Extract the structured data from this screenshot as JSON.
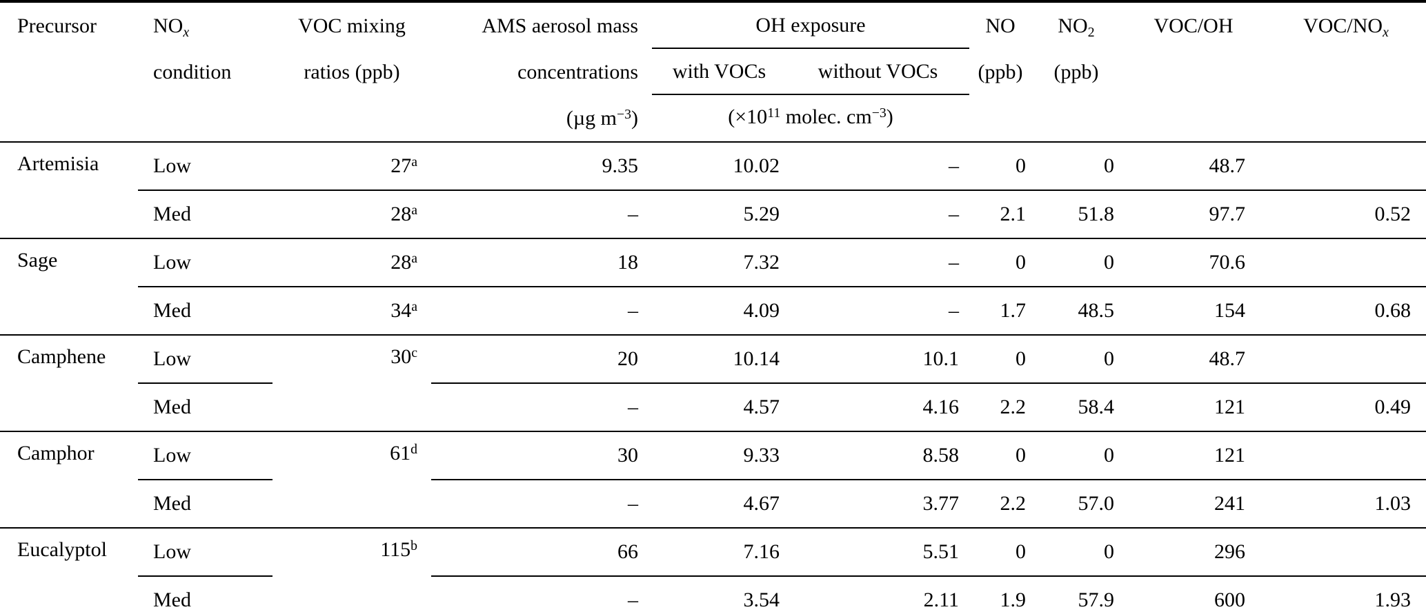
{
  "colors": {
    "background": "#ffffff",
    "text": "#000000",
    "rules": "#000000"
  },
  "header": {
    "precursor": "Precursor",
    "nox_line1": "NO~{x}",
    "nox_line2": "condition",
    "voc_line1": "VOC mixing",
    "voc_line2": "ratios (ppb)",
    "ams_line1": "AMS aerosol mass",
    "ams_line2": "concentrations",
    "ams_line3": "(µg m^{−3})",
    "oh_group": "OH exposure",
    "oh_with": "with VOCs",
    "oh_without": "without VOCs",
    "oh_units": "(×10^{11} molec. cm^{−3})",
    "no_line1": "NO",
    "no_line2": "(ppb)",
    "no2_line1": "NO_{2}",
    "no2_line2": "(ppb)",
    "voc_oh": "VOC/OH",
    "voc_nox": "VOC/NO~{x}"
  },
  "table": {
    "missing_value_symbol": "–",
    "footnote_marks_used": [
      "a",
      "b",
      "c",
      "d"
    ],
    "groups": [
      {
        "precursor": "Artemisia",
        "merged_voc": false,
        "rows": [
          {
            "condition": "Low",
            "voc": "27^{a}",
            "ams": "9.35",
            "oh_with": "10.02",
            "oh_without": "–",
            "no": "0",
            "no2": "0",
            "voc_oh": "48.7",
            "voc_nox": ""
          },
          {
            "condition": "Med",
            "voc": "28^{a}",
            "ams": "–",
            "oh_with": "5.29",
            "oh_without": "–",
            "no": "2.1",
            "no2": "51.8",
            "voc_oh": "97.7",
            "voc_nox": "0.52"
          }
        ]
      },
      {
        "precursor": "Sage",
        "merged_voc": false,
        "rows": [
          {
            "condition": "Low",
            "voc": "28^{a}",
            "ams": "18",
            "oh_with": "7.32",
            "oh_without": "–",
            "no": "0",
            "no2": "0",
            "voc_oh": "70.6",
            "voc_nox": ""
          },
          {
            "condition": "Med",
            "voc": "34^{a}",
            "ams": "–",
            "oh_with": "4.09",
            "oh_without": "–",
            "no": "1.7",
            "no2": "48.5",
            "voc_oh": "154",
            "voc_nox": "0.68"
          }
        ]
      },
      {
        "precursor": "Camphene",
        "merged_voc": true,
        "voc": "30^{c}",
        "rows": [
          {
            "condition": "Low",
            "ams": "20",
            "oh_with": "10.14",
            "oh_without": "10.1",
            "no": "0",
            "no2": "0",
            "voc_oh": "48.7",
            "voc_nox": ""
          },
          {
            "condition": "Med",
            "ams": "–",
            "oh_with": "4.57",
            "oh_without": "4.16",
            "no": "2.2",
            "no2": "58.4",
            "voc_oh": "121",
            "voc_nox": "0.49"
          }
        ]
      },
      {
        "precursor": "Camphor",
        "merged_voc": true,
        "voc": "61^{d}",
        "rows": [
          {
            "condition": "Low",
            "ams": "30",
            "oh_with": "9.33",
            "oh_without": "8.58",
            "no": "0",
            "no2": "0",
            "voc_oh": "121",
            "voc_nox": ""
          },
          {
            "condition": "Med",
            "ams": "–",
            "oh_with": "4.67",
            "oh_without": "3.77",
            "no": "2.2",
            "no2": "57.0",
            "voc_oh": "241",
            "voc_nox": "1.03"
          }
        ]
      },
      {
        "precursor": "Eucalyptol",
        "merged_voc": true,
        "voc": "115^{b}",
        "rows": [
          {
            "condition": "Low",
            "ams": "66",
            "oh_with": "7.16",
            "oh_without": "5.51",
            "no": "0",
            "no2": "0",
            "voc_oh": "296",
            "voc_nox": ""
          },
          {
            "condition": "Med",
            "ams": "–",
            "oh_with": "3.54",
            "oh_without": "2.11",
            "no": "1.9",
            "no2": "57.9",
            "voc_oh": "600",
            "voc_nox": "1.93"
          }
        ]
      }
    ]
  }
}
